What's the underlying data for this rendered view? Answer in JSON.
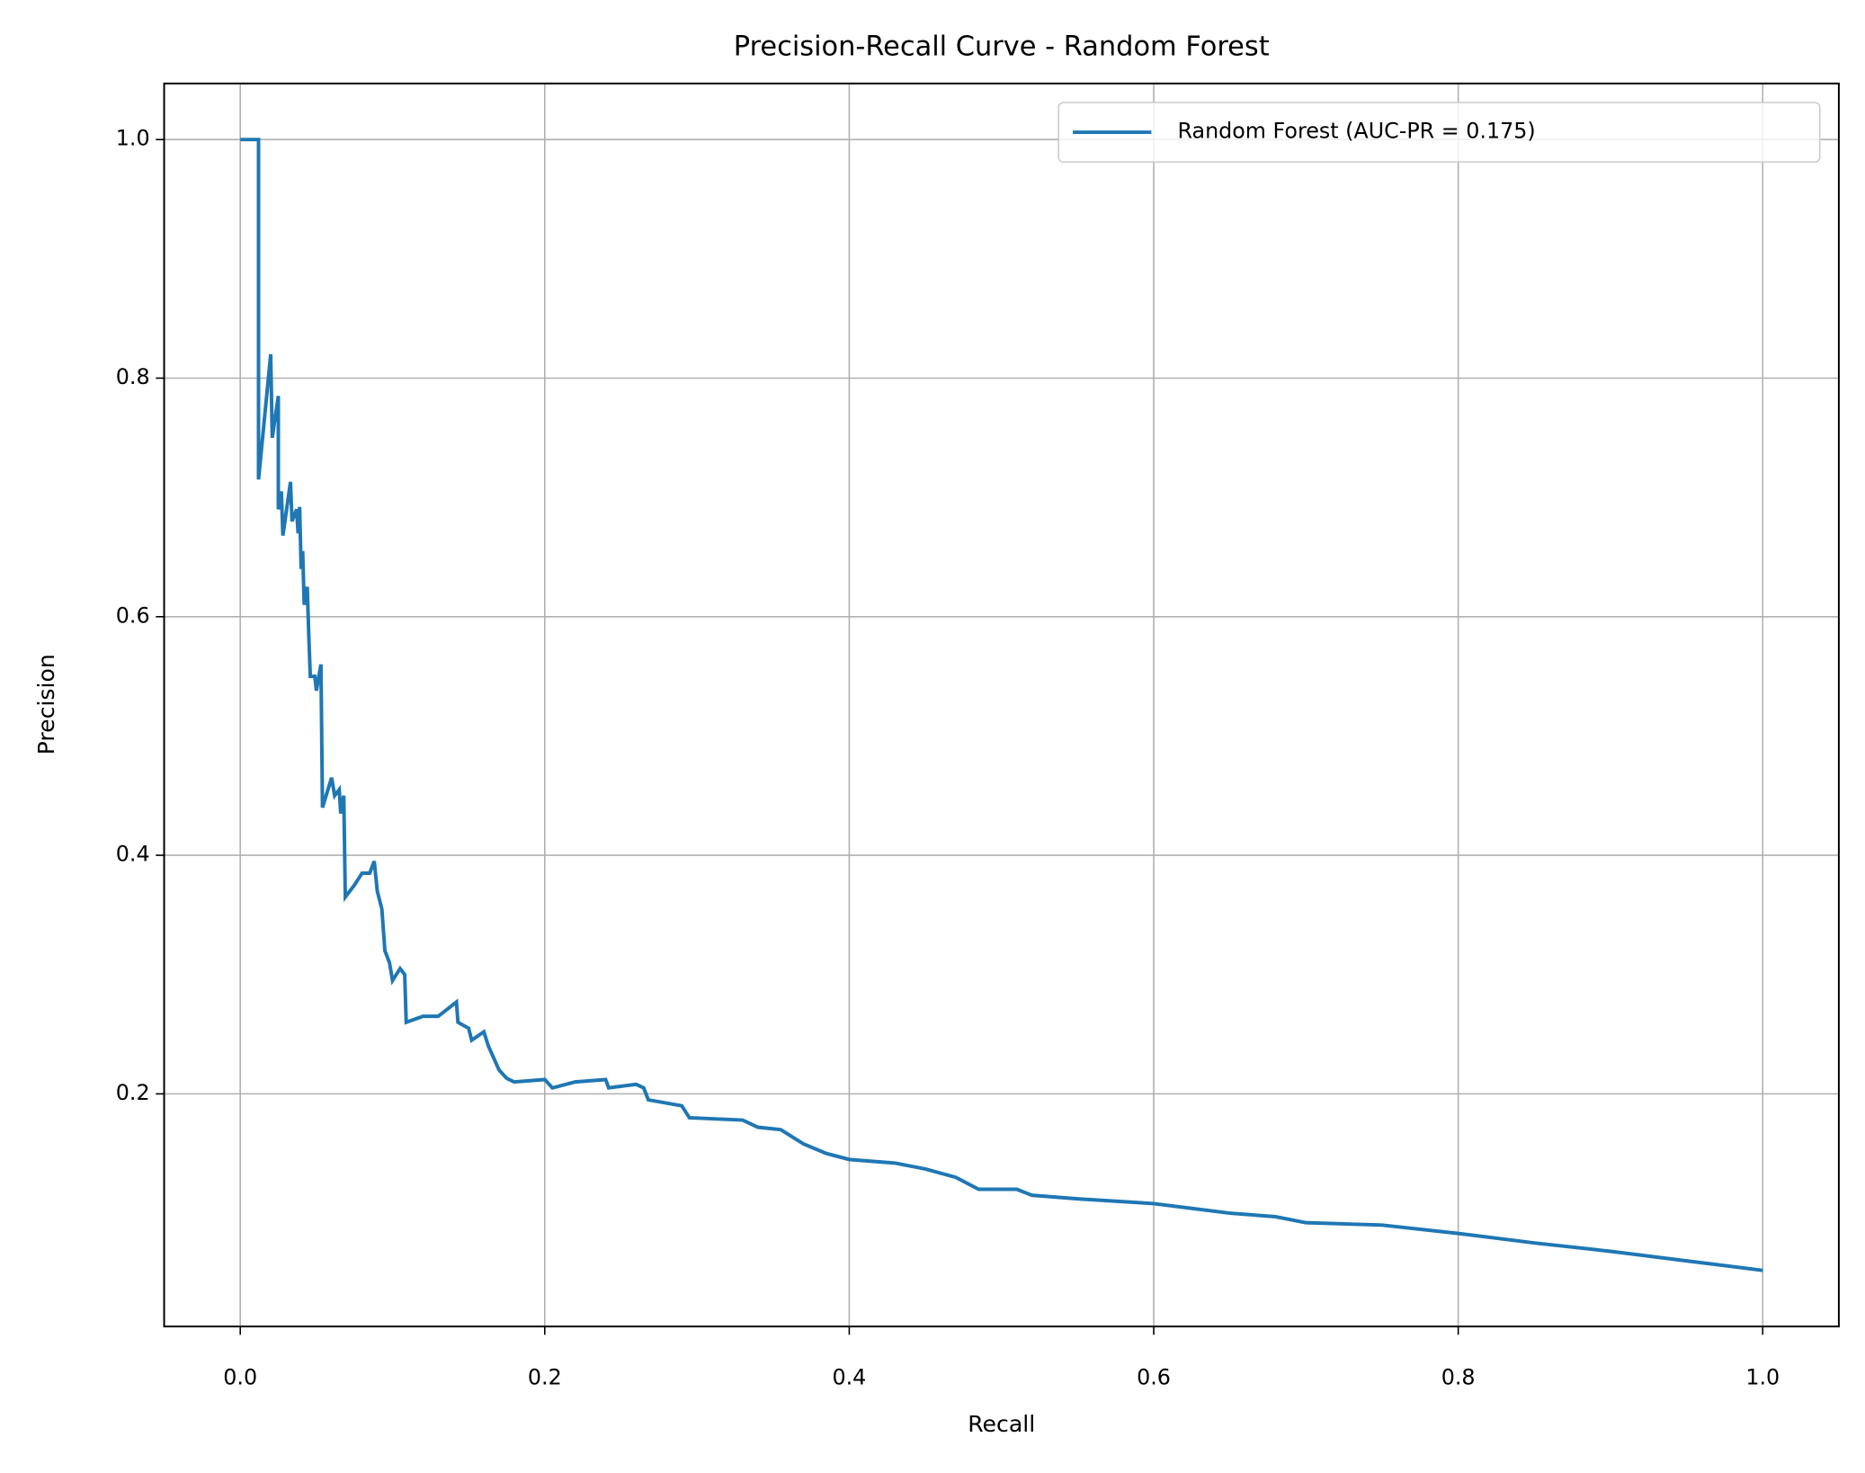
{
  "chart_data": {
    "type": "line",
    "title": "Precision-Recall Curve - Random Forest",
    "x_label": "Recall",
    "y_label": "Precision",
    "x": [
      0,
      0.012,
      0.012,
      0.02,
      0.021,
      0.025,
      0.025,
      0.027,
      0.028,
      0.033,
      0.034,
      0.037,
      0.038,
      0.039,
      0.04,
      0.041,
      0.042,
      0.044,
      0.045,
      0.046,
      0.049,
      0.05,
      0.053,
      0.054,
      0.06,
      0.062,
      0.065,
      0.066,
      0.068,
      0.069,
      0.075,
      0.08,
      0.085,
      0.088,
      0.09,
      0.093,
      0.095,
      0.098,
      0.1,
      0.105,
      0.108,
      0.109,
      0.12,
      0.13,
      0.142,
      0.143,
      0.15,
      0.152,
      0.16,
      0.163,
      0.17,
      0.175,
      0.18,
      0.2,
      0.205,
      0.22,
      0.24,
      0.242,
      0.26,
      0.265,
      0.268,
      0.29,
      0.295,
      0.33,
      0.34,
      0.355,
      0.37,
      0.385,
      0.4,
      0.43,
      0.45,
      0.47,
      0.485,
      0.51,
      0.52,
      0.55,
      0.6,
      0.625,
      0.65,
      0.68,
      0.7,
      0.75,
      0.8,
      0.85,
      0.9,
      0.95,
      1.0
    ],
    "series": [
      {
        "name": "Random Forest (AUC-PR = 0.175)",
        "color": "#1f77b4",
        "values": [
          1.0,
          1.0,
          0.715,
          0.82,
          0.75,
          0.785,
          0.69,
          0.705,
          0.668,
          0.713,
          0.68,
          0.69,
          0.67,
          0.692,
          0.64,
          0.655,
          0.61,
          0.625,
          0.585,
          0.55,
          0.55,
          0.538,
          0.56,
          0.44,
          0.465,
          0.45,
          0.455,
          0.435,
          0.45,
          0.365,
          0.375,
          0.385,
          0.385,
          0.395,
          0.37,
          0.355,
          0.32,
          0.31,
          0.295,
          0.305,
          0.3,
          0.26,
          0.265,
          0.265,
          0.277,
          0.26,
          0.255,
          0.245,
          0.252,
          0.24,
          0.22,
          0.213,
          0.21,
          0.212,
          0.205,
          0.21,
          0.212,
          0.205,
          0.208,
          0.205,
          0.195,
          0.19,
          0.18,
          0.178,
          0.172,
          0.17,
          0.158,
          0.15,
          0.145,
          0.142,
          0.137,
          0.13,
          0.12,
          0.12,
          0.115,
          0.112,
          0.108,
          0.104,
          0.1,
          0.097,
          0.092,
          0.09,
          0.083,
          0.075,
          0.068,
          0.06,
          0.052
        ]
      }
    ],
    "xlim": [
      -0.05,
      1.05
    ],
    "ylim": [
      0.005,
      1.047
    ],
    "xticks": [
      {
        "value": 0,
        "label": "0.0"
      },
      0.2,
      0.4,
      0.6,
      0.8,
      {
        "value": 1,
        "label": "1.0"
      }
    ],
    "yticks": [
      0.2,
      0.4,
      0.6,
      0.8,
      {
        "value": 1,
        "label": "1.0"
      }
    ],
    "grid": true,
    "legend": "upper right"
  }
}
